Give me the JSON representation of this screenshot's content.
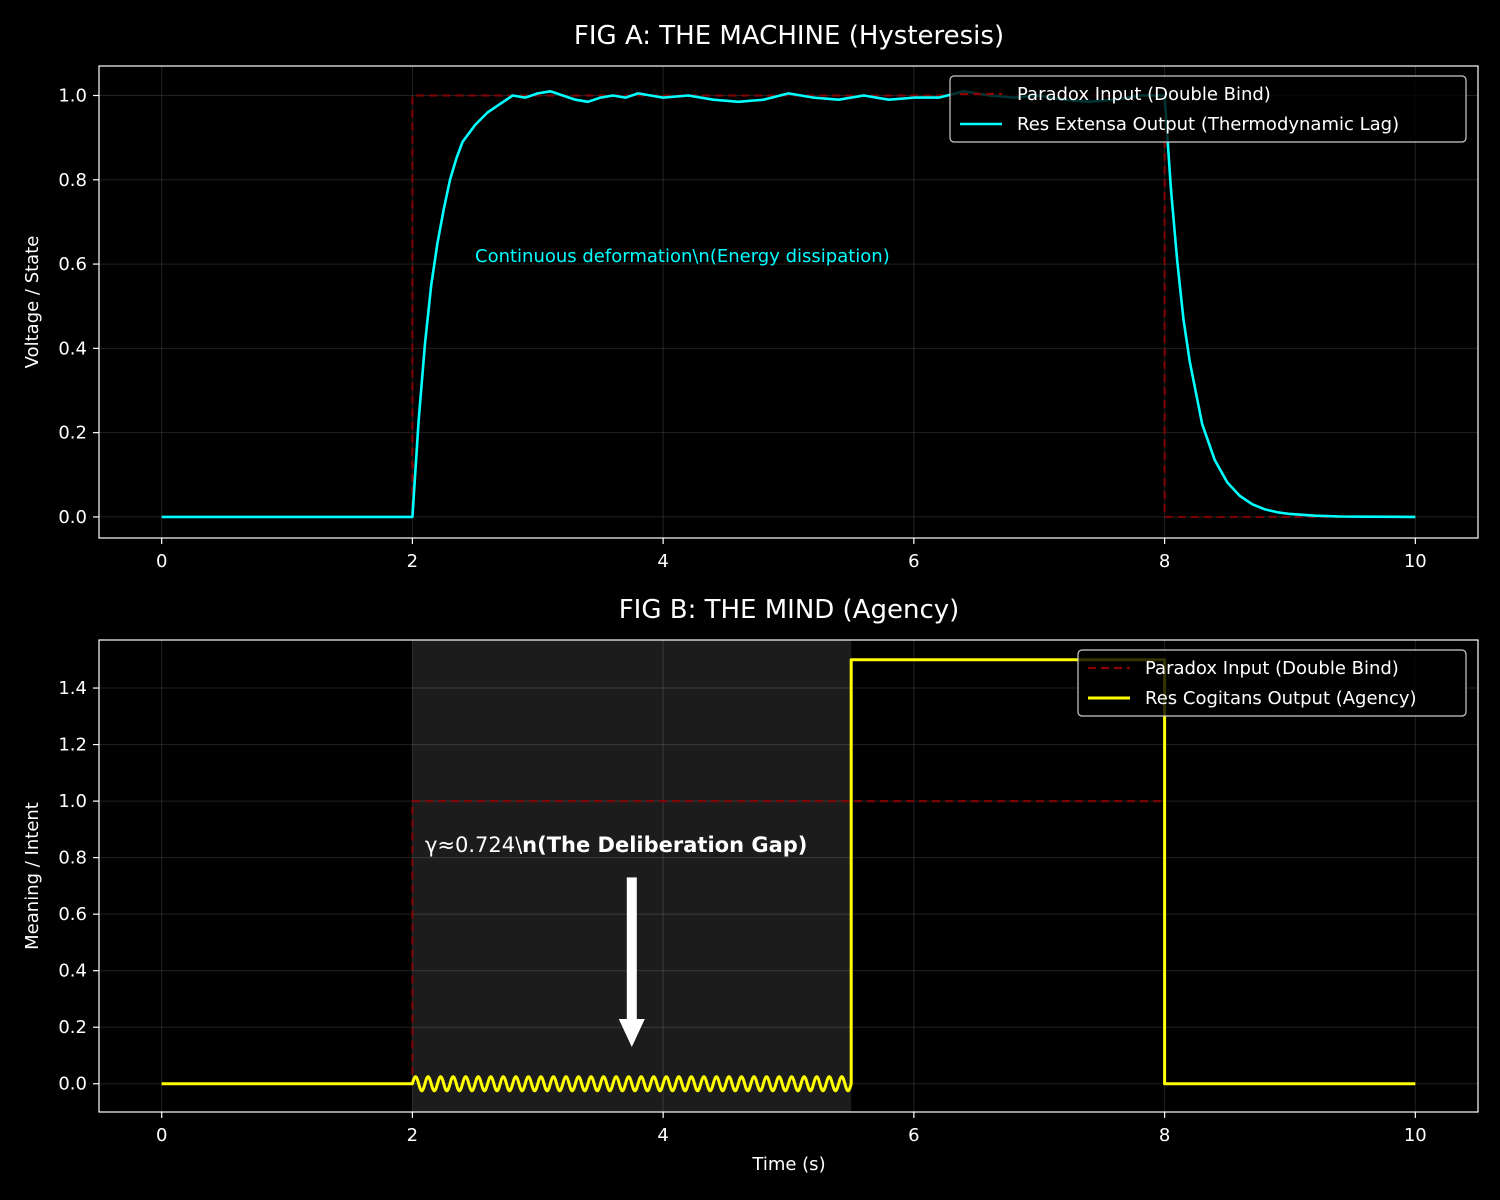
{
  "chart_data": [
    {
      "type": "line",
      "title": "FIG A: THE MACHINE (Hysteresis)",
      "xlabel": "",
      "ylabel": "Voltage / State",
      "xlim": [
        -0.5,
        10.5
      ],
      "ylim": [
        -0.05,
        1.07
      ],
      "xticks": [
        "0",
        "2",
        "4",
        "6",
        "8",
        "10"
      ],
      "yticks": [
        "0.0",
        "0.2",
        "0.4",
        "0.6",
        "0.8",
        "1.0"
      ],
      "grid": true,
      "legend_position": "top-right",
      "annotation": {
        "text": "Continuous deformation\\n(Energy dissipation)",
        "x": 2.5,
        "y": 0.6,
        "color": "#00ffff"
      },
      "series": [
        {
          "name": "Paradox Input (Double Bind)",
          "color": "#8b0000",
          "style": "dashed",
          "x": [
            0,
            2,
            2,
            8,
            8,
            10
          ],
          "y": [
            0,
            0,
            1,
            1,
            0,
            0
          ]
        },
        {
          "name": "Res Extensa Output (Thermodynamic Lag)",
          "color": "#00ffff",
          "style": "solid",
          "x": [
            0,
            2.0,
            2.05,
            2.1,
            2.15,
            2.2,
            2.25,
            2.3,
            2.35,
            2.4,
            2.45,
            2.5,
            2.6,
            2.7,
            2.8,
            2.9,
            3.0,
            3.1,
            3.2,
            3.3,
            3.4,
            3.5,
            3.6,
            3.7,
            3.8,
            3.9,
            4.0,
            4.2,
            4.4,
            4.6,
            4.8,
            5.0,
            5.2,
            5.4,
            5.6,
            5.8,
            6.0,
            6.2,
            6.4,
            6.6,
            6.8,
            7.0,
            7.2,
            7.4,
            7.6,
            7.8,
            8.0,
            8.05,
            8.1,
            8.15,
            8.2,
            8.3,
            8.4,
            8.5,
            8.6,
            8.7,
            8.8,
            8.9,
            9.0,
            9.2,
            9.4,
            9.6,
            10.0
          ],
          "y": [
            0,
            0,
            0.23,
            0.41,
            0.55,
            0.65,
            0.73,
            0.8,
            0.85,
            0.89,
            0.91,
            0.93,
            0.96,
            0.98,
            1.0,
            0.995,
            1.005,
            1.01,
            1.0,
            0.99,
            0.985,
            0.995,
            1.0,
            0.995,
            1.005,
            1.0,
            0.995,
            1.0,
            0.99,
            0.985,
            0.99,
            1.005,
            0.995,
            0.99,
            1.0,
            0.99,
            0.995,
            0.995,
            1.01,
            1.0,
            0.995,
            1.0,
            0.99,
            0.985,
            0.99,
            1.0,
            1.0,
            0.78,
            0.61,
            0.47,
            0.37,
            0.22,
            0.135,
            0.082,
            0.05,
            0.03,
            0.018,
            0.011,
            0.007,
            0.003,
            0.001,
            0.0005,
            0
          ]
        }
      ]
    },
    {
      "type": "line",
      "title": "FIG B: THE MIND (Agency)",
      "xlabel": "Time (s)",
      "ylabel": "Meaning / Intent",
      "xlim": [
        -0.5,
        10.5
      ],
      "ylim": [
        -0.1,
        1.57
      ],
      "xticks": [
        "0",
        "2",
        "4",
        "6",
        "8",
        "10"
      ],
      "yticks": [
        "0.0",
        "0.2",
        "0.4",
        "0.6",
        "0.8",
        "1.0",
        "1.2",
        "1.4"
      ],
      "grid": true,
      "legend_position": "top-right",
      "shaded_region": {
        "x0": 2,
        "x1": 5.5,
        "color": "#1c1c1c"
      },
      "annotation": {
        "text_prefix": "γ≈0.724\\",
        "text_bold": "n(The Deliberation Gap)",
        "text_x": 2.1,
        "text_y": 0.82,
        "arrow_x": 3.75,
        "arrow_from_y": 0.73,
        "arrow_to_y": 0.13
      },
      "oscillation": {
        "x0": 2,
        "x1": 5.5,
        "amplitude": 0.025,
        "cycles": 35
      },
      "series": [
        {
          "name": "Paradox Input (Double Bind)",
          "color": "#8b0000",
          "style": "dashed",
          "x": [
            0,
            2,
            2,
            8,
            8,
            10
          ],
          "y": [
            0,
            0,
            1,
            1,
            0,
            0
          ]
        },
        {
          "name": "Res Cogitans Output (Agency)",
          "color": "#ffff00",
          "style": "solid",
          "x": [
            0,
            2,
            5.5,
            5.5,
            8,
            8,
            10
          ],
          "y": [
            0,
            0,
            0,
            1.5,
            1.5,
            0,
            0
          ]
        }
      ]
    }
  ]
}
